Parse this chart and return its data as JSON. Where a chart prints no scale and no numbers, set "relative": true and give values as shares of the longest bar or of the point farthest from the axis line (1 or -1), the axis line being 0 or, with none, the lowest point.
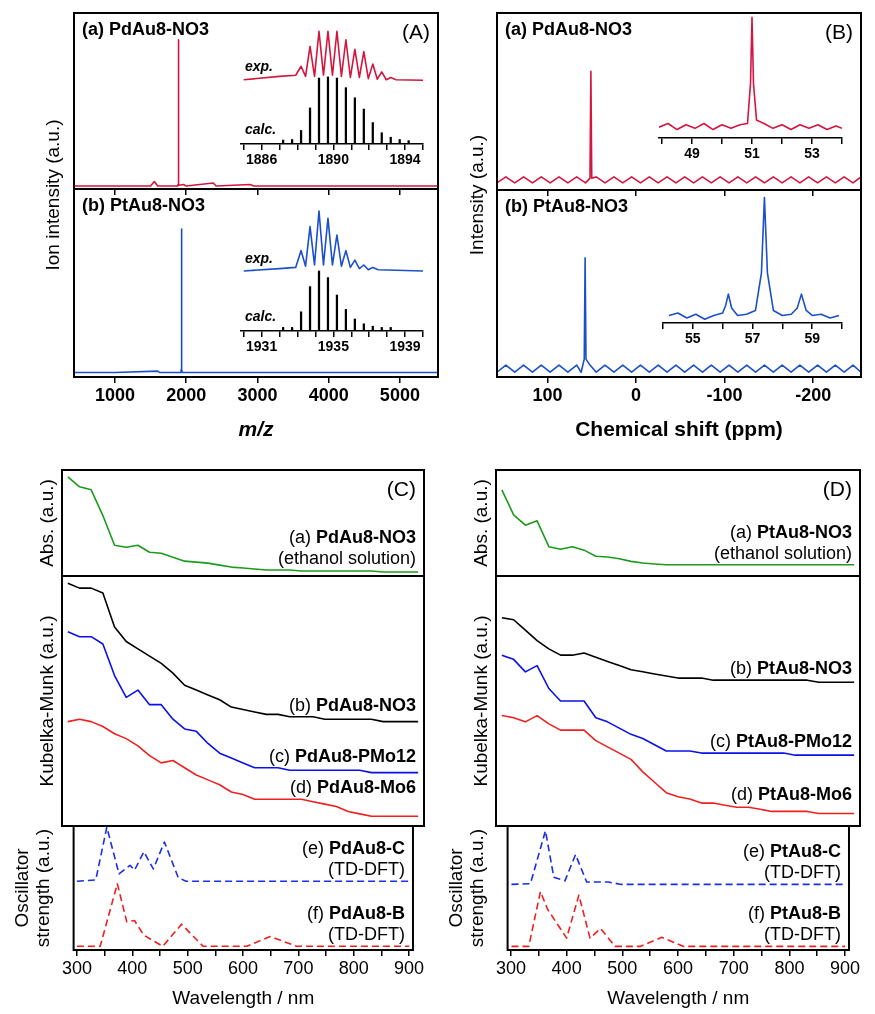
{
  "chart_data": [
    {
      "type": "line",
      "relative": true,
      "title": "(a) PdAu8-NO3",
      "ylabel": "Ion intensity (a.u.)",
      "annotations": [
        "(A)"
      ],
      "xlim": [
        425,
        5535
      ],
      "xticks": [
        1000,
        2000,
        3000,
        4000,
        5000
      ],
      "tick_labels": false,
      "series": [
        {
          "color": "#d4163f",
          "x": [
            425,
            1000,
            1500,
            1552,
            1600,
            1880,
            1885,
            1890,
            1895,
            1900,
            1960,
            2000,
            2380,
            2420,
            2896,
            2950,
            5535
          ],
          "values": [
            0.02,
            0.02,
            0.02,
            0.05,
            0.02,
            0.02,
            0.03,
            1,
            0.03,
            0.025,
            0.03,
            0.02,
            0.04,
            0.02,
            0.03,
            0.02,
            0.02
          ]
        }
      ]
    },
    {
      "type": "line",
      "relative": true,
      "xlim": [
        1884.85,
        1895
      ],
      "xticks": [
        {
          "value": 1885,
          "label": null
        },
        1886,
        {
          "value": 1887,
          "label": null
        },
        {
          "value": 1888,
          "label": null
        },
        {
          "value": 1889,
          "label": null
        },
        1890,
        {
          "value": 1891,
          "label": null
        },
        {
          "value": 1892,
          "label": null
        },
        {
          "value": 1893,
          "label": null
        },
        1894,
        {
          "value": 1895,
          "label": null
        }
      ],
      "tick_labels": "x",
      "series": [
        {
          "name": "exp.",
          "color": "#d4163f",
          "x": [
            1885,
            1887,
            1887.9,
            1888.2,
            1888.45,
            1888.7,
            1888.95,
            1889.2,
            1889.45,
            1889.7,
            1889.95,
            1890.2,
            1890.45,
            1890.7,
            1890.95,
            1891.2,
            1891.45,
            1891.7,
            1891.95,
            1892.2,
            1892.45,
            1892.7,
            1892.95,
            1893.2,
            1893.5,
            1895
          ],
          "values": [
            0.57,
            0.6,
            0.61,
            0.69,
            0.6,
            0.865,
            0.6,
            1,
            0.61,
            1,
            0.61,
            1,
            0.6,
            0.925,
            0.59,
            0.84,
            0.59,
            0.82,
            0.58,
            0.71,
            0.575,
            0.64,
            0.57,
            0.59,
            0.57,
            0.565
          ]
        },
        {
          "name": "calc.",
          "type": "bar",
          "color": "#000000",
          "x": [
            1887.2,
            1887.7,
            1888.2,
            1888.7,
            1889.2,
            1889.7,
            1890.2,
            1890.7,
            1891.2,
            1891.7,
            1892.2,
            1892.7,
            1893.2,
            1893.7,
            1894.2
          ],
          "values": [
            0.035,
            0.04,
            0.12,
            0.32,
            0.585,
            0.595,
            0.585,
            0.5,
            0.41,
            0.31,
            0.19,
            0.1,
            0.06,
            0.04,
            0.03
          ]
        }
      ]
    },
    {
      "type": "line",
      "relative": true,
      "title": "(b) PtAu8-NO3",
      "xlabel": "m/z",
      "xlim": [
        425,
        5535
      ],
      "xticks": [
        1000,
        2000,
        3000,
        4000,
        5000
      ],
      "tick_labels": "x",
      "series": [
        {
          "color": "#1c50c8",
          "x": [
            425,
            1000,
            1600,
            1630,
            1700,
            1925,
            1930,
            1934,
            1938,
            1945,
            2000,
            5535
          ],
          "values": [
            0.03,
            0.03,
            0.04,
            0.03,
            0.03,
            0.03,
            0.05,
            1,
            0.05,
            0.03,
            0.03,
            0.03
          ]
        }
      ]
    },
    {
      "type": "line",
      "relative": true,
      "xlim": [
        1929.85,
        1940
      ],
      "xticks": [
        {
          "value": 1930,
          "label": null
        },
        1931,
        {
          "value": 1932,
          "label": null
        },
        {
          "value": 1933,
          "label": null
        },
        {
          "value": 1934,
          "label": null
        },
        1935,
        {
          "value": 1936,
          "label": null
        },
        {
          "value": 1937,
          "label": null
        },
        {
          "value": 1938,
          "label": null
        },
        1939,
        {
          "value": 1940,
          "label": null
        }
      ],
      "tick_labels": "x",
      "series": [
        {
          "name": "exp.",
          "color": "#1c50c8",
          "x": [
            1930,
            1932,
            1932.9,
            1933.2,
            1933.45,
            1933.7,
            1933.95,
            1934.2,
            1934.45,
            1934.7,
            1934.95,
            1935.2,
            1935.45,
            1935.7,
            1935.95,
            1936.2,
            1936.45,
            1936.7,
            1936.95,
            1937.2,
            1937.5,
            1940
          ],
          "values": [
            0.5,
            0.52,
            0.53,
            0.67,
            0.54,
            0.87,
            0.55,
            1,
            0.55,
            0.94,
            0.55,
            0.8,
            0.54,
            0.67,
            0.53,
            0.59,
            0.52,
            0.55,
            0.51,
            0.53,
            0.51,
            0.5
          ]
        },
        {
          "name": "calc.",
          "type": "bar",
          "color": "#000000",
          "x": [
            1932.2,
            1932.7,
            1933.2,
            1933.7,
            1934.2,
            1934.7,
            1935.2,
            1935.7,
            1936.2,
            1936.7,
            1937.2,
            1937.7,
            1938.2
          ],
          "values": [
            0.03,
            0.03,
            0.16,
            0.37,
            0.5,
            0.445,
            0.3,
            0.18,
            0.1,
            0.06,
            0.04,
            0.03,
            0.03
          ]
        }
      ]
    },
    {
      "type": "line",
      "relative": true,
      "title": "(a) PdAu8-NO3",
      "ylabel": "Intensity (a.u.)",
      "annotations": [
        "(B)"
      ],
      "xlim": [
        157,
        -254
      ],
      "xticks": [
        100,
        0,
        -100,
        -200
      ],
      "tick_labels": false,
      "series": [
        {
          "color": "#d4163f",
          "x": [
            157,
            147,
            137,
            127,
            117,
            107,
            97,
            87,
            77,
            67,
            57,
            52,
            51,
            50,
            45,
            35,
            25,
            15,
            5,
            -5,
            -15,
            -25,
            -35,
            -45,
            -55,
            -65,
            -75,
            -85,
            -95,
            -105,
            -115,
            -125,
            -135,
            -145,
            -155,
            -165,
            -175,
            -185,
            -195,
            -205,
            -215,
            -225,
            -235,
            -245,
            -254
          ],
          "values": [
            0.06,
            0.11,
            0.06,
            0.11,
            0.06,
            0.11,
            0.06,
            0.11,
            0.06,
            0.11,
            0.06,
            0.1,
            1,
            0.1,
            0.11,
            0.06,
            0.11,
            0.06,
            0.11,
            0.06,
            0.11,
            0.06,
            0.11,
            0.06,
            0.11,
            0.06,
            0.11,
            0.06,
            0.11,
            0.06,
            0.11,
            0.06,
            0.11,
            0.06,
            0.11,
            0.06,
            0.11,
            0.06,
            0.11,
            0.06,
            0.11,
            0.06,
            0.11,
            0.06,
            0.11
          ]
        }
      ]
    },
    {
      "type": "line",
      "relative": true,
      "xlim": [
        47.9,
        54
      ],
      "xticks": [
        {
          "value": 48,
          "label": null
        },
        49,
        {
          "value": 50,
          "label": null
        },
        51,
        {
          "value": 52,
          "label": null
        },
        53,
        {
          "value": 54,
          "label": null
        }
      ],
      "tick_labels": "x",
      "series": [
        {
          "color": "#d4163f",
          "x": [
            47.9,
            48.2,
            48.5,
            48.8,
            49.1,
            49.4,
            49.7,
            50,
            50.3,
            50.6,
            50.85,
            50.95,
            51,
            51.05,
            51.15,
            51.4,
            51.7,
            52,
            52.3,
            52.6,
            52.9,
            53.2,
            53.5,
            53.8,
            54
          ],
          "values": [
            0.09,
            0.12,
            0.07,
            0.11,
            0.08,
            0.12,
            0.07,
            0.11,
            0.08,
            0.11,
            0.12,
            0.45,
            1,
            0.45,
            0.15,
            0.12,
            0.08,
            0.11,
            0.07,
            0.11,
            0.08,
            0.11,
            0.07,
            0.1,
            0.08
          ]
        }
      ]
    },
    {
      "type": "line",
      "relative": true,
      "title": "(b) PtAu8-NO3",
      "xlabel": "Chemical shift (ppm)",
      "xlim": [
        157,
        -254
      ],
      "xticks": [
        100,
        0,
        -100,
        -200
      ],
      "tick_labels": "x",
      "series": [
        {
          "color": "#1c50c8",
          "x": [
            157,
            147,
            137,
            127,
            117,
            107,
            97,
            87,
            77,
            67,
            62,
            58.5,
            57.5,
            56.5,
            52,
            45,
            35,
            25,
            15,
            5,
            -5,
            -15,
            -25,
            -35,
            -45,
            -55,
            -65,
            -75,
            -85,
            -95,
            -105,
            -115,
            -125,
            -135,
            -145,
            -155,
            -165,
            -175,
            -185,
            -195,
            -205,
            -215,
            -225,
            -235,
            -245,
            -254
          ],
          "values": [
            0.04,
            0.1,
            0.04,
            0.1,
            0.04,
            0.1,
            0.04,
            0.1,
            0.04,
            0.1,
            0.04,
            0.15,
            1,
            0.15,
            0.1,
            0.04,
            0.1,
            0.04,
            0.1,
            0.04,
            0.1,
            0.04,
            0.1,
            0.04,
            0.1,
            0.04,
            0.1,
            0.04,
            0.1,
            0.04,
            0.1,
            0.04,
            0.1,
            0.04,
            0.1,
            0.04,
            0.1,
            0.04,
            0.1,
            0.04,
            0.1,
            0.04,
            0.1,
            0.04,
            0.1,
            0.04
          ]
        }
      ]
    },
    {
      "type": "line",
      "relative": true,
      "xlim": [
        54,
        60
      ],
      "xticks": [
        {
          "value": 54,
          "label": null
        },
        55,
        {
          "value": 56,
          "label": null
        },
        57,
        {
          "value": 58,
          "label": null
        },
        59,
        {
          "value": 60,
          "label": null
        }
      ],
      "tick_labels": "x",
      "series": [
        {
          "color": "#1c50c8",
          "x": [
            54.2,
            54.5,
            54.8,
            55.1,
            55.4,
            55.7,
            56,
            56.1,
            56.19,
            56.3,
            56.5,
            56.8,
            57.1,
            57.3,
            57.4,
            57.5,
            57.7,
            58,
            58.3,
            58.5,
            58.64,
            58.8,
            59,
            59.3,
            59.6,
            59.9
          ],
          "values": [
            0.06,
            0.08,
            0.04,
            0.07,
            0.03,
            0.06,
            0.08,
            0.14,
            0.23,
            0.12,
            0.06,
            0.07,
            0.1,
            0.4,
            1,
            0.4,
            0.1,
            0.06,
            0.07,
            0.12,
            0.23,
            0.1,
            0.06,
            0.07,
            0.04,
            0.06
          ]
        }
      ]
    },
    {
      "type": "line",
      "relative": true,
      "ylabel": "Abs. (a.u.)",
      "annotations": [
        "(C)"
      ],
      "categories": [
        null,
        null,
        null,
        null,
        null,
        null,
        null,
        null,
        null,
        null,
        null,
        null,
        null,
        null,
        null,
        null,
        null,
        null,
        null,
        null,
        null,
        null,
        null,
        null,
        null,
        null,
        null,
        null,
        null,
        null,
        null
      ],
      "tick_labels": false,
      "series": [
        {
          "name": "(a) PdAu8-NO3 (ethanol solution)",
          "color": "#1c9a1c",
          "values": [
            1,
            0.9,
            0.87,
            0.61,
            0.31,
            0.29,
            0.31,
            0.24,
            0.23,
            0.19,
            0.15,
            0.14,
            0.13,
            0.11,
            0.09,
            0.08,
            0.07,
            0.06,
            0.06,
            0.06,
            0.05,
            0.05,
            0.05,
            0.05,
            0.05,
            0.05,
            0.05,
            0.04,
            0.04,
            0.04,
            0.04
          ]
        }
      ]
    },
    {
      "type": "line",
      "relative": true,
      "ylabel": "Kubelka-Munk (a.u.)",
      "categories": [
        null,
        null,
        null,
        null,
        null,
        null,
        null,
        null,
        null,
        null,
        null,
        null,
        null,
        null,
        null,
        null,
        null,
        null,
        null,
        null,
        null,
        null,
        null,
        null,
        null,
        null,
        null,
        null,
        null,
        null,
        null
      ],
      "tick_labels": false,
      "series": [
        {
          "name": "(b) PdAu8-NO3",
          "color": "#000000",
          "values": [
            1,
            0.98,
            0.98,
            0.96,
            0.82,
            0.76,
            0.73,
            0.7,
            0.67,
            0.63,
            0.58,
            0.56,
            0.54,
            0.52,
            0.49,
            0.48,
            0.47,
            0.46,
            0.46,
            0.45,
            0.45,
            0.45,
            0.44,
            0.44,
            0.44,
            0.44,
            0.44,
            0.43,
            0.43,
            0.43,
            0.43
          ]
        },
        {
          "name": "(c) PdAu8-PMo12",
          "color": "#0a10e8",
          "values": [
            0.8,
            0.78,
            0.78,
            0.75,
            0.62,
            0.53,
            0.56,
            0.5,
            0.5,
            0.44,
            0.4,
            0.39,
            0.34,
            0.3,
            0.28,
            0.26,
            0.24,
            0.24,
            0.24,
            0.23,
            0.23,
            0.23,
            0.23,
            0.23,
            0.23,
            0.23,
            0.22,
            0.22,
            0.22,
            0.22,
            0.22
          ]
        },
        {
          "name": "(d) PdAu8-Mo6",
          "color": "#ee2020",
          "values": [
            0.43,
            0.44,
            0.43,
            0.41,
            0.38,
            0.36,
            0.33,
            0.29,
            0.26,
            0.27,
            0.24,
            0.21,
            0.19,
            0.17,
            0.14,
            0.13,
            0.11,
            0.11,
            0.11,
            0.11,
            0.11,
            0.1,
            0.09,
            0.08,
            0.06,
            0.05,
            0.04,
            0.04,
            0.04,
            0.04,
            0.04
          ]
        }
      ]
    },
    {
      "type": "line",
      "relative": true,
      "ylabel": "Oscillator strength (a.u.)",
      "xlabel": "Wavelength / nm",
      "xlim": [
        294,
        907
      ],
      "xticks": [
        300,
        {
          "value": 350,
          "label": null
        },
        400,
        {
          "value": 450,
          "label": null
        },
        500,
        {
          "value": 550,
          "label": null
        },
        600,
        {
          "value": 650,
          "label": null
        },
        700,
        {
          "value": 750,
          "label": null
        },
        800,
        {
          "value": 850,
          "label": null
        },
        900
      ],
      "tick_labels": "x",
      "line_style": "dashed",
      "series": [
        {
          "name": "(e) PdAu8-C (TD-DFT)",
          "color": "#1a2ee8",
          "x": [
            300,
            334,
            354,
            376,
            396,
            404,
            421,
            438,
            458,
            483,
            497,
            900
          ],
          "values": [
            0.56,
            0.57,
            1,
            0.62,
            0.69,
            0.65,
            0.8,
            0.66,
            0.88,
            0.59,
            0.56,
            0.56
          ]
        },
        {
          "name": "(f) PdAu8-B (TD-DFT)",
          "color": "#ee2020",
          "x": [
            300,
            342,
            373,
            390,
            404,
            421,
            455,
            489,
            528,
            607,
            649,
            697,
            900
          ],
          "values": [
            0.03,
            0.03,
            0.54,
            0.23,
            0.24,
            0.12,
            0.03,
            0.21,
            0.03,
            0.03,
            0.11,
            0.03,
            0.03
          ]
        }
      ]
    },
    {
      "type": "line",
      "relative": true,
      "ylabel": "Abs. (a.u.)",
      "annotations": [
        "(D)"
      ],
      "categories": [
        null,
        null,
        null,
        null,
        null,
        null,
        null,
        null,
        null,
        null,
        null,
        null,
        null,
        null,
        null,
        null,
        null,
        null,
        null,
        null,
        null,
        null,
        null,
        null,
        null,
        null,
        null,
        null,
        null,
        null,
        null
      ],
      "tick_labels": false,
      "series": [
        {
          "name": "(a) PtAu8-NO3 (ethanol solution)",
          "color": "#1c9a1c",
          "values": [
            1,
            0.71,
            0.59,
            0.64,
            0.34,
            0.31,
            0.34,
            0.3,
            0.23,
            0.22,
            0.2,
            0.17,
            0.15,
            0.14,
            0.13,
            0.13,
            0.13,
            0.13,
            0.13,
            0.13,
            0.13,
            0.13,
            0.13,
            0.13,
            0.13,
            0.13,
            0.13,
            0.13,
            0.13,
            0.13,
            0.13
          ]
        }
      ]
    },
    {
      "type": "line",
      "relative": true,
      "ylabel": "Kubelka-Munk (a.u.)",
      "categories": [
        null,
        null,
        null,
        null,
        null,
        null,
        null,
        null,
        null,
        null,
        null,
        null,
        null,
        null,
        null,
        null,
        null,
        null,
        null,
        null,
        null,
        null,
        null,
        null,
        null,
        null,
        null,
        null,
        null,
        null,
        null
      ],
      "tick_labels": false,
      "series": [
        {
          "name": "(b) PtAu8-NO3",
          "color": "#000000",
          "values": [
            1,
            0.99,
            0.94,
            0.89,
            0.85,
            0.82,
            0.82,
            0.83,
            0.81,
            0.79,
            0.77,
            0.75,
            0.74,
            0.73,
            0.72,
            0.71,
            0.71,
            0.71,
            0.7,
            0.7,
            0.7,
            0.7,
            0.7,
            0.7,
            0.7,
            0.7,
            0.7,
            0.69,
            0.69,
            0.69,
            0.69
          ]
        },
        {
          "name": "(c) PtAu8-PMo12",
          "color": "#0a10e8",
          "values": [
            0.82,
            0.8,
            0.74,
            0.77,
            0.66,
            0.6,
            0.6,
            0.6,
            0.52,
            0.5,
            0.47,
            0.44,
            0.42,
            0.39,
            0.36,
            0.36,
            0.36,
            0.35,
            0.35,
            0.35,
            0.35,
            0.35,
            0.35,
            0.35,
            0.35,
            0.34,
            0.34,
            0.34,
            0.34,
            0.34,
            0.34
          ]
        },
        {
          "name": "(d) PtAu8-Mo6",
          "color": "#ee2020",
          "values": [
            0.53,
            0.52,
            0.5,
            0.53,
            0.49,
            0.46,
            0.46,
            0.46,
            0.41,
            0.38,
            0.35,
            0.32,
            0.26,
            0.21,
            0.16,
            0.14,
            0.13,
            0.11,
            0.11,
            0.1,
            0.09,
            0.09,
            0.08,
            0.07,
            0.07,
            0.07,
            0.07,
            0.06,
            0.06,
            0.06,
            0.06
          ]
        }
      ]
    },
    {
      "type": "line",
      "relative": true,
      "ylabel": "Oscillator strength (a.u.)",
      "xlabel": "Wavelength / nm",
      "xlim": [
        294,
        907
      ],
      "xticks": [
        300,
        {
          "value": 350,
          "label": null
        },
        400,
        {
          "value": 450,
          "label": null
        },
        500,
        {
          "value": 550,
          "label": null
        },
        600,
        {
          "value": 650,
          "label": null
        },
        700,
        {
          "value": 750,
          "label": null
        },
        800,
        {
          "value": 850,
          "label": null
        },
        900
      ],
      "tick_labels": "x",
      "line_style": "dashed",
      "series": [
        {
          "name": "(e) PtAu8-C (TD-DFT)",
          "color": "#1a2ee8",
          "x": [
            301,
            335,
            362,
            377,
            397,
            416,
            436,
            475,
            498,
            900
          ],
          "values": [
            0.55,
            0.556,
            1,
            0.61,
            0.58,
            0.8,
            0.57,
            0.57,
            0.55,
            0.55
          ]
        },
        {
          "name": "(f) PtAu8-B (TD-DFT)",
          "color": "#ee2020",
          "x": [
            301,
            332,
            353,
            366,
            400,
            422,
            442,
            461,
            487,
            532,
            571,
            610,
            900
          ],
          "values": [
            0.03,
            0.03,
            0.49,
            0.34,
            0.1,
            0.46,
            0.1,
            0.18,
            0.03,
            0.03,
            0.106,
            0.03,
            0.03
          ]
        }
      ]
    }
  ]
}
